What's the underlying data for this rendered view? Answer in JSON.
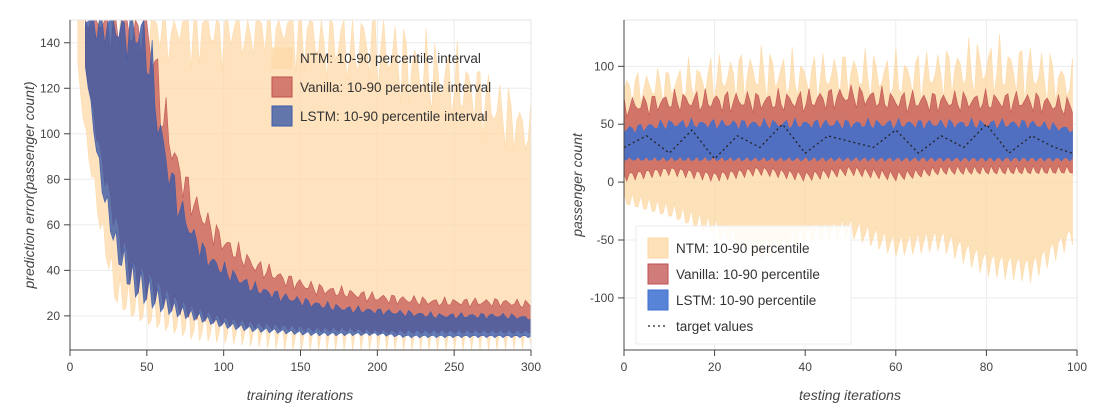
{
  "chart_data": [
    {
      "type": "area",
      "xlabel": "training iterations",
      "ylabel": "prediction error(passenger count)",
      "xlim": [
        0,
        300
      ],
      "ylim": [
        5,
        150
      ],
      "xticks": [
        "0",
        "50",
        "100",
        "150",
        "200",
        "250",
        "300"
      ],
      "yticks": [
        "20",
        "40",
        "60",
        "80",
        "100",
        "120",
        "140"
      ],
      "grid": true,
      "legend_position": "top-right",
      "series": [
        {
          "name": "NTM: 10-90 percentile interval",
          "color": "#fdd9a8",
          "opacity": 0.75,
          "x": [
            5,
            10,
            20,
            30,
            40,
            50,
            60,
            70,
            80,
            100,
            120,
            140,
            160,
            180,
            200,
            220,
            240,
            260,
            280,
            300
          ],
          "lower": [
            130,
            100,
            60,
            30,
            25,
            22,
            20,
            18,
            16,
            15,
            14,
            13,
            13,
            13,
            12,
            12,
            12,
            12,
            12,
            12
          ],
          "upper": [
            150,
            150,
            150,
            150,
            150,
            150,
            150,
            150,
            150,
            150,
            150,
            150,
            145,
            140,
            140,
            130,
            125,
            120,
            110,
            100
          ]
        },
        {
          "name": "Vanilla: 10-90 percentile interval",
          "color": "#c0504d",
          "opacity": 0.7,
          "x": [
            10,
            20,
            30,
            40,
            50,
            60,
            70,
            80,
            90,
            100,
            120,
            140,
            160,
            180,
            200,
            220,
            240,
            260,
            280,
            300
          ],
          "lower": [
            130,
            90,
            60,
            40,
            35,
            30,
            25,
            22,
            20,
            18,
            16,
            15,
            14,
            14,
            13,
            13,
            13,
            13,
            13,
            13
          ],
          "upper": [
            150,
            150,
            150,
            150,
            150,
            110,
            85,
            70,
            60,
            52,
            42,
            36,
            32,
            30,
            28,
            27,
            26,
            26,
            26,
            25
          ]
        },
        {
          "name": "LSTM: 10-90 percentile interval",
          "color": "#3b5aa8",
          "opacity": 0.8,
          "x": [
            10,
            20,
            30,
            40,
            50,
            60,
            70,
            80,
            90,
            100,
            120,
            140,
            160,
            180,
            200,
            220,
            240,
            260,
            280,
            300
          ],
          "lower": [
            130,
            80,
            50,
            35,
            30,
            25,
            22,
            20,
            18,
            16,
            14,
            13,
            12,
            12,
            12,
            11,
            11,
            11,
            11,
            11
          ],
          "upper": [
            150,
            150,
            150,
            150,
            140,
            95,
            70,
            55,
            45,
            40,
            32,
            28,
            25,
            23,
            22,
            21,
            20,
            20,
            20,
            19
          ]
        }
      ]
    },
    {
      "type": "area",
      "xlabel": "testing iterations",
      "ylabel": "passenger count",
      "xlim": [
        0,
        100
      ],
      "ylim": [
        -145,
        140
      ],
      "xticks": [
        "0",
        "20",
        "40",
        "60",
        "80",
        "100"
      ],
      "yticks": [
        "100",
        "50",
        "0",
        "-50",
        "-100"
      ],
      "grid": true,
      "legend_position": "bottom-left",
      "series": [
        {
          "name": "NTM: 10-90 percentile",
          "color": "#fdd9a8",
          "opacity": 0.8,
          "x": [
            0,
            10,
            20,
            30,
            40,
            50,
            60,
            70,
            80,
            90,
            99
          ],
          "lower": [
            -15,
            -25,
            -40,
            -60,
            -45,
            -40,
            -55,
            -50,
            -70,
            -75,
            -45
          ],
          "upper": [
            80,
            85,
            90,
            95,
            90,
            95,
            90,
            95,
            100,
            95,
            85
          ]
        },
        {
          "name": "Vanilla: 10-90 percentile",
          "color": "#c0504d",
          "opacity": 0.75,
          "x": [
            0,
            10,
            20,
            30,
            40,
            50,
            60,
            70,
            80,
            90,
            99
          ],
          "lower": [
            5,
            10,
            5,
            10,
            5,
            10,
            5,
            10,
            10,
            10,
            10
          ],
          "upper": [
            65,
            70,
            70,
            70,
            70,
            75,
            70,
            70,
            70,
            70,
            65
          ]
        },
        {
          "name": "LSTM: 10-90 percentile",
          "color": "#3b6fd0",
          "opacity": 0.85,
          "x": [
            0,
            10,
            20,
            30,
            40,
            50,
            60,
            70,
            80,
            90,
            99
          ],
          "lower": [
            20,
            20,
            20,
            20,
            20,
            20,
            20,
            20,
            20,
            20,
            20
          ],
          "upper": [
            45,
            50,
            50,
            50,
            50,
            50,
            50,
            50,
            50,
            50,
            45
          ]
        },
        {
          "name": "target values",
          "type": "line",
          "dash": true,
          "color": "#222222",
          "x": [
            0,
            5,
            10,
            15,
            20,
            25,
            30,
            35,
            40,
            45,
            50,
            55,
            60,
            65,
            70,
            75,
            80,
            85,
            90,
            95,
            99
          ],
          "y": [
            30,
            40,
            25,
            45,
            20,
            40,
            30,
            50,
            25,
            40,
            35,
            30,
            45,
            25,
            40,
            30,
            50,
            25,
            40,
            30,
            25
          ]
        }
      ]
    }
  ]
}
